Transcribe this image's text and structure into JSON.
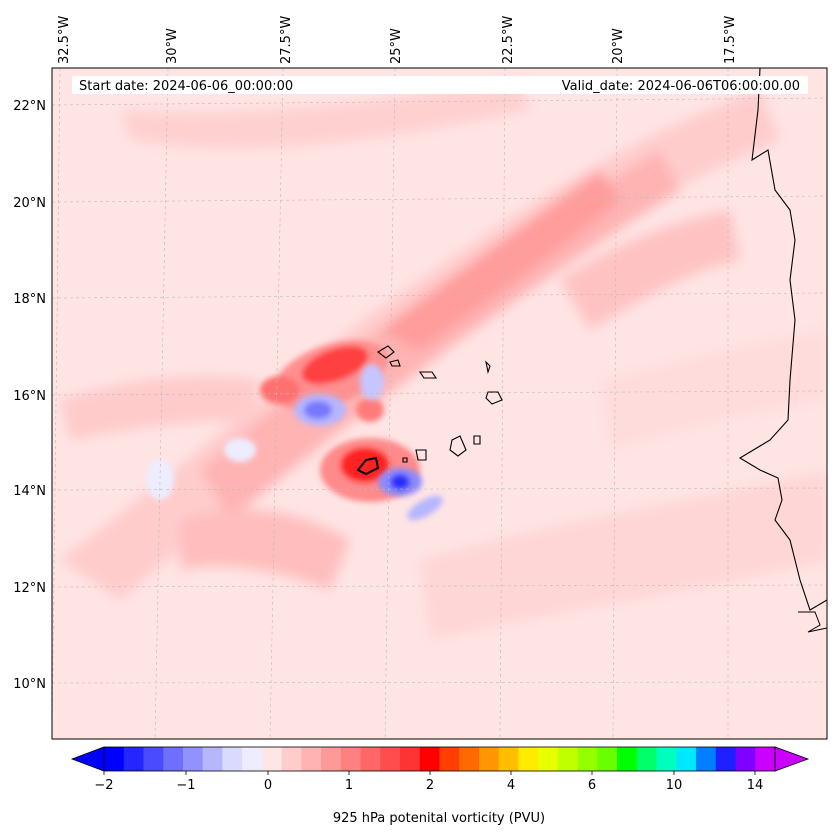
{
  "header": {
    "start_date": "Start date: 2024-06-06_00:00:00",
    "valid_date": "Valid_date: 2024-06-06T06:00:00.00"
  },
  "map": {
    "lon_labels": [
      "32.5°W",
      "30°W",
      "27.5°W",
      "25°W",
      "22.5°W",
      "20°W",
      "17.5°W"
    ],
    "lat_labels": [
      "22°N",
      "20°N",
      "18°N",
      "16°N",
      "14°N",
      "12°N",
      "10°N"
    ],
    "region": "Cape Verde Islands and West African coast",
    "variable": "925 hPa potential vorticity field"
  },
  "colorbar": {
    "label": "925 hPa potenital vorticity (PVU)",
    "tick_labels": [
      "-2",
      "-1",
      "0",
      "1",
      "2",
      "4",
      "6",
      "10",
      "14"
    ],
    "colors": [
      "#0000ff",
      "#2525ff",
      "#4a4aff",
      "#6e6eff",
      "#9292ff",
      "#b6b6ff",
      "#dadaff",
      "#ededff",
      "#ffe6e6",
      "#ffcccc",
      "#ffb3b3",
      "#ff9999",
      "#ff8080",
      "#ff6666",
      "#ff4d4d",
      "#ff3333",
      "#ff0000",
      "#ff4000",
      "#ff6a00",
      "#ff9500",
      "#ffbf00",
      "#ffea00",
      "#e8ff00",
      "#bfff00",
      "#95ff00",
      "#6aff00",
      "#00ff00",
      "#00ff6a",
      "#00ffbf",
      "#00e8ff",
      "#0080ff",
      "#2020ff",
      "#8000ff",
      "#cc00ff"
    ],
    "extend_low_color": "#0000ff",
    "extend_high_color": "#cc00ff"
  }
}
